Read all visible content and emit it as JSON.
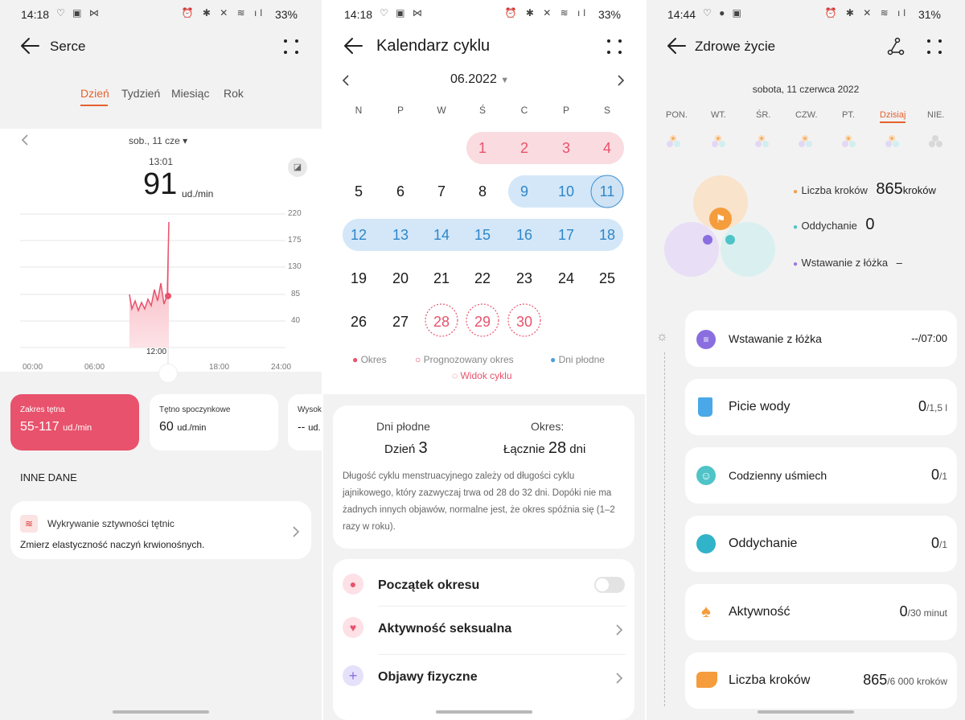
{
  "p1": {
    "status": {
      "time": "14:18",
      "battery": "33%"
    },
    "title": "Serce",
    "tabs": [
      "Dzień",
      "Tydzień",
      "Miesiąc",
      "Rok"
    ],
    "date_label": "sob., 11 cze",
    "time_label": "13:01",
    "bpm": "91",
    "bpm_unit": "ud./min",
    "y_ticks": [
      "220",
      "175",
      "130",
      "85",
      "40"
    ],
    "x_ticks": [
      "00:00",
      "06:00",
      "12:00",
      "18:00",
      "24:00"
    ],
    "cursor_label": "12:00",
    "cards": [
      {
        "label": "Zakres tętna",
        "value": "55-117",
        "unit": "ud./min"
      },
      {
        "label": "Tętno spoczynkowe",
        "value": "60",
        "unit": "ud./min"
      },
      {
        "label": "Wysok",
        "value": "--",
        "unit": "ud."
      }
    ],
    "section_title": "INNE DANE",
    "other_card": {
      "title": "Wykrywanie sztywności tętnic",
      "subtitle": "Zmierz elastyczność naczyń krwionośnych."
    }
  },
  "p2": {
    "status": {
      "time": "14:18",
      "battery": "33%"
    },
    "title": "Kalendarz cyklu",
    "month": "06.2022",
    "weekdays": [
      "N",
      "P",
      "W",
      "Ś",
      "C",
      "P",
      "S"
    ],
    "weeks": [
      [
        "",
        "",
        "",
        "1",
        "2",
        "3",
        "4"
      ],
      [
        "5",
        "6",
        "7",
        "8",
        "9",
        "10",
        "11"
      ],
      [
        "12",
        "13",
        "14",
        "15",
        "16",
        "17",
        "18"
      ],
      [
        "19",
        "20",
        "21",
        "22",
        "23",
        "24",
        "25"
      ],
      [
        "26",
        "27",
        "28",
        "29",
        "30",
        "",
        ""
      ]
    ],
    "legend": [
      "Okres",
      "Prognozowany okres",
      "Dni płodne"
    ],
    "cycle_view": "Widok cyklu",
    "summary": {
      "fertile_label": "Dni płodne",
      "fertile_day_prefix": "Dzień",
      "fertile_day": "3",
      "period_label": "Okres:",
      "period_prefix": "Łącznie",
      "period_days": "28",
      "period_suffix": "dni",
      "text": "Długość cyklu menstruacyjnego zależy od długości cyklu jajnikowego, który zazwyczaj trwa od 28 do 32 dni. Dopóki nie ma żadnych innych objawów, normalne jest, że okres spóźnia się (1–2 razy w roku)."
    },
    "items": [
      "Początek okresu",
      "Aktywność seksualna",
      "Objawy fizyczne"
    ]
  },
  "p3": {
    "status": {
      "time": "14:44",
      "battery": "31%"
    },
    "title": "Zdrowe życie",
    "date": "sobota, 11 czerwca 2022",
    "days": [
      "PON.",
      "WT.",
      "ŚR.",
      "CZW.",
      "PT.",
      "Dzisiaj",
      "NIE."
    ],
    "stats": [
      {
        "label": "Liczba kroków",
        "value": "865",
        "unit": "kroków",
        "color": "#f0a04b"
      },
      {
        "label": "Oddychanie",
        "value": "0",
        "unit": "",
        "color": "#4fc3c7"
      },
      {
        "label": "Wstawanie z łóżka",
        "value": "–",
        "unit": "",
        "color": "#9c7be0"
      }
    ],
    "rows": [
      {
        "label": "Wstawanie z łóżka",
        "value": "",
        "suffix": "--/07:00"
      },
      {
        "label": "Picie wody",
        "value": "0",
        "suffix": "/1,5 l"
      },
      {
        "label": "Codzienny uśmiech",
        "value": "0",
        "suffix": "/1"
      },
      {
        "label": "Oddychanie",
        "value": "0",
        "suffix": "/1"
      },
      {
        "label": "Aktywność",
        "value": "0",
        "suffix": "/30 minut"
      },
      {
        "label": "Liczba kroków",
        "value": "865",
        "suffix": "/6 000 kroków"
      }
    ]
  }
}
